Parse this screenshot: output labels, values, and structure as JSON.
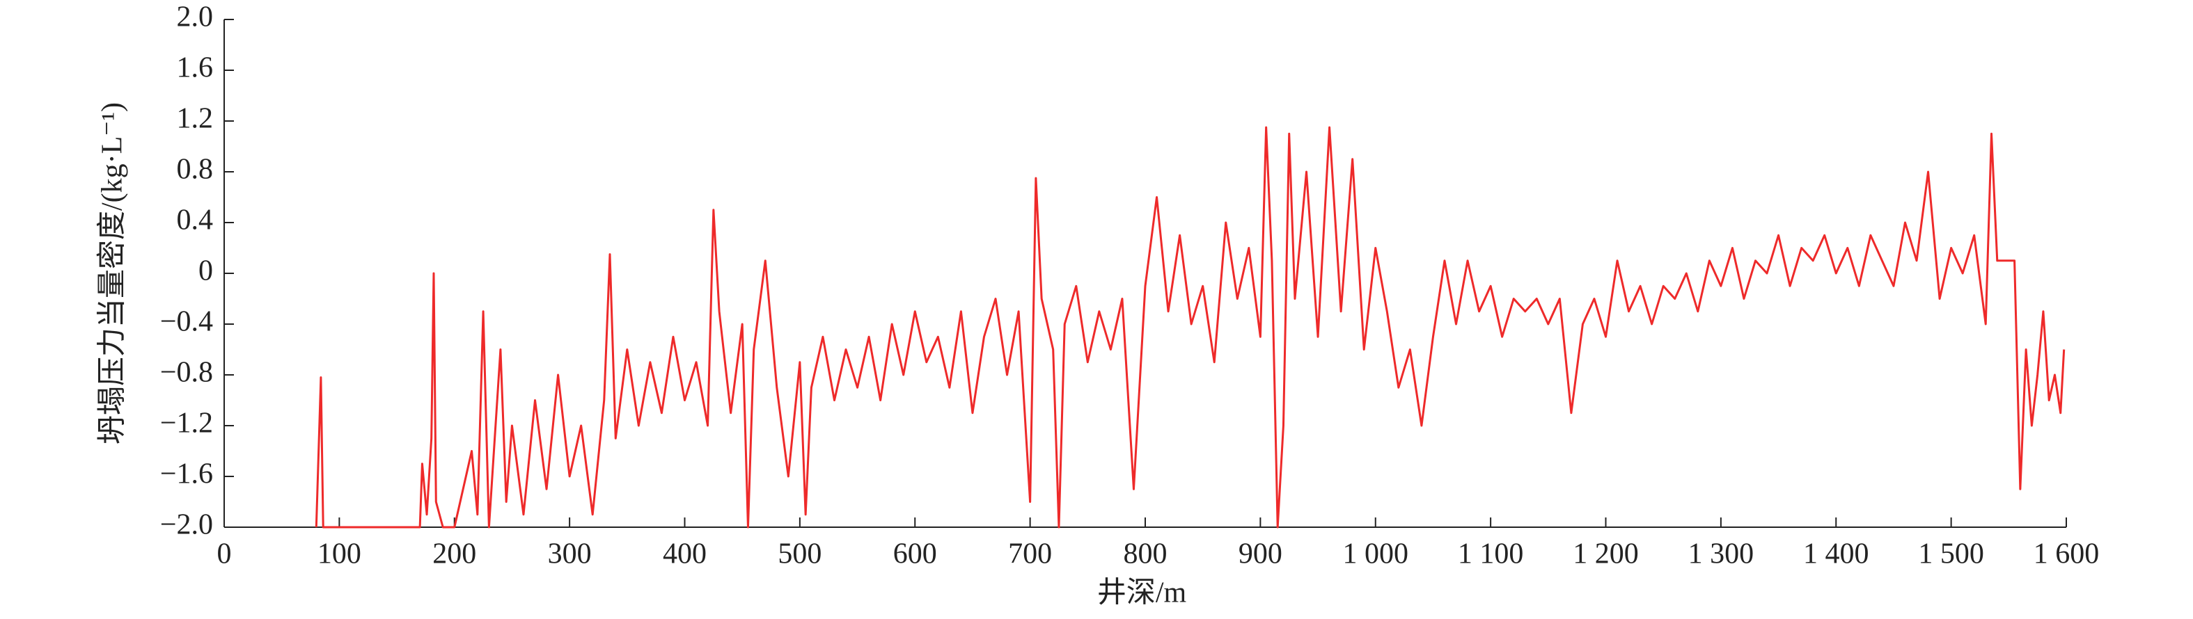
{
  "chart_data": {
    "type": "line",
    "x_label": "井深/m",
    "y_label": "坍塌压力当量密度/(kg·L⁻¹)",
    "xlim": [
      0,
      1600
    ],
    "ylim": [
      -2.0,
      2.0
    ],
    "xticks": [
      0,
      100,
      200,
      300,
      400,
      500,
      600,
      700,
      800,
      900,
      {
        "value": 1000,
        "label": "1 000"
      },
      {
        "value": 1100,
        "label": "1 100"
      },
      {
        "value": 1200,
        "label": "1 200"
      },
      {
        "value": 1300,
        "label": "1 300"
      },
      {
        "value": 1400,
        "label": "1 400"
      },
      {
        "value": 1500,
        "label": "1 500"
      },
      {
        "value": 1600,
        "label": "1 600"
      }
    ],
    "yticks": [
      {
        "value": -2.0,
        "label": "−2.0"
      },
      {
        "value": -1.6,
        "label": "−1.6"
      },
      {
        "value": -1.2,
        "label": "−1.2"
      },
      {
        "value": -0.8,
        "label": "−0.8"
      },
      {
        "value": -0.4,
        "label": "−0.4"
      },
      0,
      0.4,
      0.8,
      1.2,
      1.6,
      {
        "value": 2.0,
        "label": "2.0"
      }
    ],
    "x": [
      80,
      84,
      86,
      170,
      172,
      176,
      180,
      182,
      184,
      190,
      200,
      215,
      220,
      225,
      230,
      240,
      245,
      250,
      260,
      270,
      280,
      290,
      300,
      310,
      320,
      330,
      335,
      340,
      350,
      360,
      370,
      380,
      390,
      400,
      410,
      420,
      425,
      430,
      440,
      450,
      455,
      460,
      470,
      480,
      490,
      500,
      505,
      510,
      520,
      530,
      540,
      550,
      560,
      570,
      580,
      590,
      600,
      610,
      620,
      630,
      640,
      650,
      660,
      670,
      680,
      690,
      700,
      705,
      710,
      720,
      725,
      730,
      740,
      750,
      760,
      770,
      780,
      790,
      800,
      810,
      820,
      830,
      840,
      850,
      860,
      870,
      880,
      890,
      900,
      905,
      910,
      915,
      920,
      925,
      930,
      940,
      950,
      960,
      970,
      980,
      990,
      1000,
      1010,
      1020,
      1030,
      1040,
      1050,
      1060,
      1070,
      1080,
      1090,
      1100,
      1110,
      1120,
      1130,
      1140,
      1150,
      1160,
      1170,
      1180,
      1190,
      1200,
      1210,
      1220,
      1230,
      1240,
      1250,
      1260,
      1270,
      1280,
      1290,
      1300,
      1310,
      1320,
      1330,
      1340,
      1350,
      1360,
      1370,
      1380,
      1390,
      1400,
      1410,
      1420,
      1430,
      1440,
      1450,
      1460,
      1470,
      1480,
      1490,
      1500,
      1510,
      1520,
      1530,
      1535,
      1540,
      1550,
      1555,
      1560,
      1565,
      1570,
      1575,
      1580,
      1585,
      1590,
      1595,
      1598
    ],
    "series": [
      {
        "name": "坍塌压力",
        "color": "#ee2a2a",
        "values": [
          -2,
          -0.82,
          -2,
          -2,
          -1.5,
          -1.9,
          -1.3,
          0.0,
          -1.8,
          -2,
          -2,
          -1.4,
          -1.9,
          -0.3,
          -2,
          -0.6,
          -1.8,
          -1.2,
          -1.9,
          -1.0,
          -1.7,
          -0.8,
          -1.6,
          -1.2,
          -1.9,
          -1.0,
          0.15,
          -1.3,
          -0.6,
          -1.2,
          -0.7,
          -1.1,
          -0.5,
          -1.0,
          -0.7,
          -1.2,
          0.5,
          -0.3,
          -1.1,
          -0.4,
          -2,
          -0.6,
          0.1,
          -0.9,
          -1.6,
          -0.7,
          -1.9,
          -0.9,
          -0.5,
          -1.0,
          -0.6,
          -0.9,
          -0.5,
          -1.0,
          -0.4,
          -0.8,
          -0.3,
          -0.7,
          -0.5,
          -0.9,
          -0.3,
          -1.1,
          -0.5,
          -0.2,
          -0.8,
          -0.3,
          -1.8,
          0.75,
          -0.2,
          -0.6,
          -2,
          -0.4,
          -0.1,
          -0.7,
          -0.3,
          -0.6,
          -0.2,
          -1.7,
          -0.1,
          0.6,
          -0.3,
          0.3,
          -0.4,
          -0.1,
          -0.7,
          0.4,
          -0.2,
          0.2,
          -0.5,
          1.15,
          0.1,
          -2,
          -1.2,
          1.1,
          -0.2,
          0.8,
          -0.5,
          1.15,
          -0.3,
          0.9,
          -0.6,
          0.2,
          -0.3,
          -0.9,
          -0.6,
          -1.2,
          -0.5,
          0.1,
          -0.4,
          0.1,
          -0.3,
          -0.1,
          -0.5,
          -0.2,
          -0.3,
          -0.2,
          -0.4,
          -0.2,
          -1.1,
          -0.4,
          -0.2,
          -0.5,
          0.1,
          -0.3,
          -0.1,
          -0.4,
          -0.1,
          -0.2,
          0.0,
          -0.3,
          0.1,
          -0.1,
          0.2,
          -0.2,
          0.1,
          0.0,
          0.3,
          -0.1,
          0.2,
          0.1,
          0.3,
          0.0,
          0.2,
          -0.1,
          0.3,
          0.1,
          -0.1,
          0.4,
          0.1,
          0.8,
          -0.2,
          0.2,
          0.0,
          0.3,
          -0.4,
          1.1,
          0.1,
          0.1,
          0.1,
          -1.7,
          -0.6,
          -1.2,
          -0.8,
          -0.3,
          -1.0,
          -0.8,
          -1.1,
          -0.6
        ]
      }
    ]
  }
}
